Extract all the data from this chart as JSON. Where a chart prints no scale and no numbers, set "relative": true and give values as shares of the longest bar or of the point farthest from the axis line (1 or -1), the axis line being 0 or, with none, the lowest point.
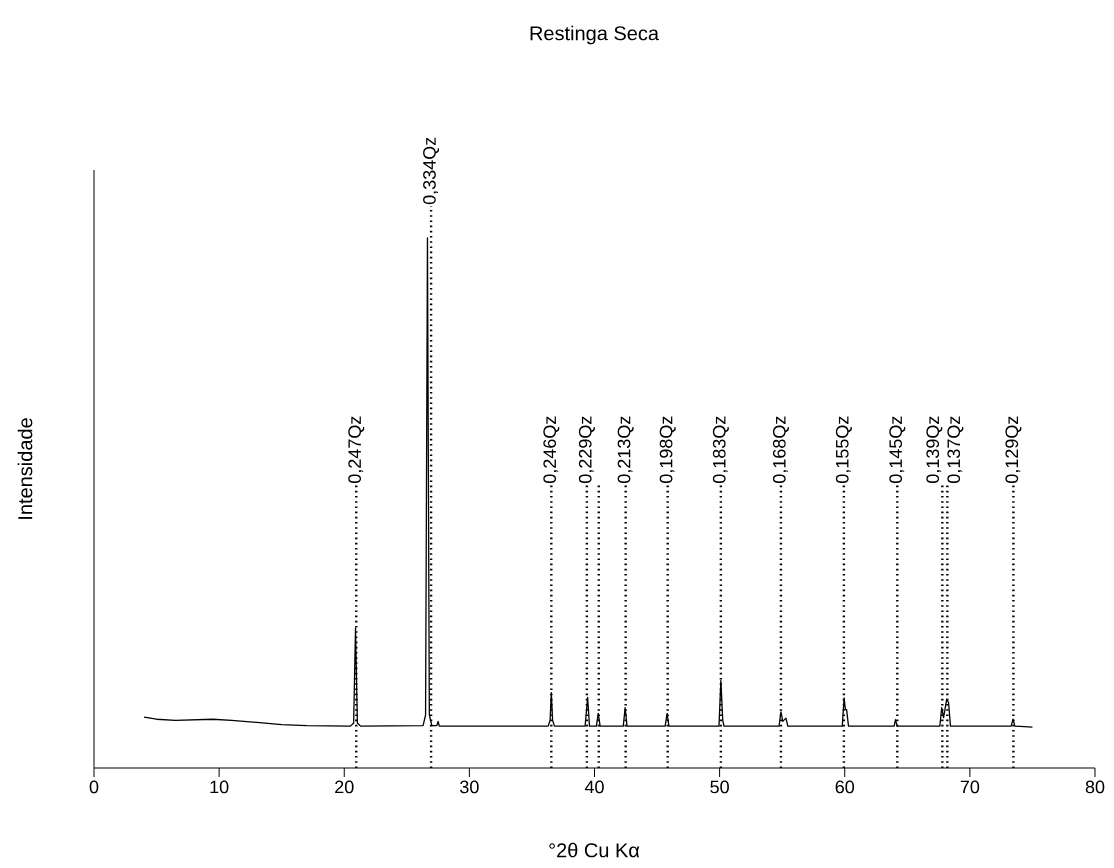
{
  "chart_data": {
    "type": "line",
    "title": "Restinga Seca",
    "xlabel": "°2θ Cu Kα",
    "ylabel": "Intensidade",
    "relative": true,
    "xlim": [
      0,
      80
    ],
    "xticks": [
      0,
      10,
      20,
      30,
      40,
      50,
      60,
      70,
      80
    ],
    "grid": false,
    "marker": "none",
    "line_style": "solid",
    "x": [
      4.0,
      5.0,
      6.5,
      8.0,
      9.5,
      11.0,
      13.0,
      15.0,
      17.0,
      20.5,
      20.75,
      20.9,
      21.05,
      21.3,
      26.3,
      26.5,
      26.65,
      26.8,
      27.0,
      27.4,
      27.5,
      27.6,
      36.3,
      36.45,
      36.55,
      36.65,
      36.8,
      39.25,
      39.45,
      39.6,
      40.15,
      40.3,
      40.45,
      42.3,
      42.45,
      42.6,
      45.65,
      45.8,
      45.95,
      49.95,
      50.1,
      50.25,
      50.35,
      54.75,
      54.9,
      55.05,
      55.3,
      55.45,
      59.8,
      59.95,
      60.05,
      60.15,
      60.3,
      63.95,
      64.05,
      64.2,
      67.6,
      67.75,
      67.9,
      68.15,
      68.3,
      68.45,
      73.3,
      73.45,
      73.6,
      75.0
    ],
    "series": [
      {
        "color": "#000000",
        "values": [
          0.096,
          0.092,
          0.09,
          0.091,
          0.092,
          0.09,
          0.086,
          0.082,
          0.08,
          0.079,
          0.085,
          0.264,
          0.085,
          0.079,
          0.08,
          0.1,
          1.0,
          0.1,
          0.08,
          0.08,
          0.088,
          0.079,
          0.079,
          0.09,
          0.142,
          0.09,
          0.079,
          0.079,
          0.133,
          0.079,
          0.079,
          0.103,
          0.079,
          0.079,
          0.114,
          0.079,
          0.079,
          0.103,
          0.079,
          0.079,
          0.165,
          0.09,
          0.079,
          0.079,
          0.106,
          0.088,
          0.094,
          0.079,
          0.079,
          0.132,
          0.11,
          0.11,
          0.079,
          0.079,
          0.091,
          0.079,
          0.079,
          0.114,
          0.095,
          0.13,
          0.123,
          0.079,
          0.079,
          0.092,
          0.079,
          0.077
        ]
      }
    ],
    "ref_lines": [
      {
        "axis": "x",
        "value": 20.96,
        "label": "0,247Qz",
        "line_style": "dotted"
      },
      {
        "axis": "x",
        "value": 26.94,
        "label": "0,334Qz",
        "line_style": "dotted"
      },
      {
        "axis": "x",
        "value": 36.55,
        "label": "0,246Qz",
        "line_style": "dotted"
      },
      {
        "axis": "x",
        "value": 39.39,
        "label": "0,229Qz",
        "line_style": "dotted"
      },
      {
        "axis": "x",
        "value": 40.34,
        "line_style": "dotted"
      },
      {
        "axis": "x",
        "value": 42.49,
        "label": "0,213Qz",
        "line_style": "dotted"
      },
      {
        "axis": "x",
        "value": 45.85,
        "label": "0,198Qz",
        "line_style": "dotted"
      },
      {
        "axis": "x",
        "value": 50.1,
        "label": "0,183Qz",
        "line_style": "dotted"
      },
      {
        "axis": "x",
        "value": 54.9,
        "label": "0,168Qz",
        "line_style": "dotted"
      },
      {
        "axis": "x",
        "value": 59.93,
        "label": "0,155Qz",
        "line_style": "dotted"
      },
      {
        "axis": "x",
        "value": 64.2,
        "label": "0,145Qz",
        "line_style": "dotted"
      },
      {
        "axis": "x",
        "value": 67.8,
        "label": "0,139Qz",
        "line_style": "dotted"
      },
      {
        "axis": "x",
        "value": 68.2,
        "label": "0,137Qz",
        "line_style": "dotted"
      },
      {
        "axis": "x",
        "value": 73.48,
        "label": "0,129Qz",
        "line_style": "dotted"
      }
    ]
  }
}
